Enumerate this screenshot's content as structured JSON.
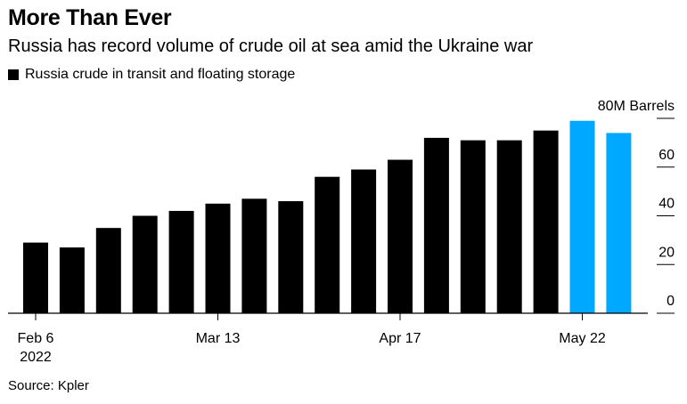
{
  "title": "More Than Ever",
  "subtitle": "Russia has record volume of crude oil at sea amid the Ukraine war",
  "legend": {
    "label": "Russia crude in transit and floating storage"
  },
  "source": "Source: Kpler",
  "colors": {
    "bar": "#000000",
    "highlight": "#00a8ff"
  },
  "chart_data": {
    "type": "bar",
    "title": "More Than Ever",
    "subtitle": "Russia has record volume of crude oil at sea amid the Ukraine war",
    "unit_label": "80M Barrels",
    "ylim": [
      0,
      80
    ],
    "y_ticks": [
      0,
      20,
      40,
      60,
      80
    ],
    "grid": false,
    "categories": [
      "2022-02-06",
      "2022-02-13",
      "2022-02-20",
      "2022-02-27",
      "2022-03-06",
      "2022-03-13",
      "2022-03-20",
      "2022-03-27",
      "2022-04-03",
      "2022-04-10",
      "2022-04-17",
      "2022-04-24",
      "2022-05-01",
      "2022-05-08",
      "2022-05-15",
      "2022-05-22",
      "2022-05-29"
    ],
    "x_tick_labels": [
      {
        "index": 0,
        "label": "Feb 6",
        "sublabel": "2022"
      },
      {
        "index": 5,
        "label": "Mar 13",
        "sublabel": ""
      },
      {
        "index": 10,
        "label": "Apr 17",
        "sublabel": ""
      },
      {
        "index": 15,
        "label": "May 22",
        "sublabel": ""
      }
    ],
    "series": [
      {
        "name": "Russia crude in transit and floating storage",
        "values": [
          29,
          27,
          35,
          40,
          42,
          45,
          47,
          46,
          56,
          59,
          63,
          72,
          71,
          71,
          75,
          79,
          74
        ],
        "highlight_indices": [
          15,
          16
        ]
      }
    ]
  }
}
